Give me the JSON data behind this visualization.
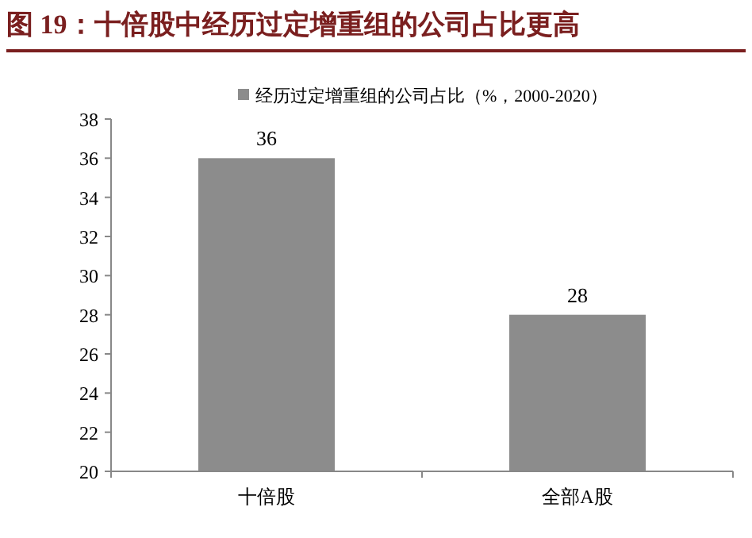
{
  "chart_data": {
    "type": "bar",
    "title": "图 19：十倍股中经历过定增重组的公司占比更高",
    "categories": [
      "十倍股",
      "全部A股"
    ],
    "series": [
      {
        "name": "经历过定增重组的公司占比（%，2000-2020）",
        "color": "#8c8c8c",
        "values": [
          36,
          28
        ]
      }
    ],
    "ylim": [
      20,
      38
    ],
    "yticks": [
      20,
      22,
      24,
      26,
      28,
      30,
      32,
      34,
      36,
      38
    ],
    "data_labels": true,
    "legend": "top"
  }
}
